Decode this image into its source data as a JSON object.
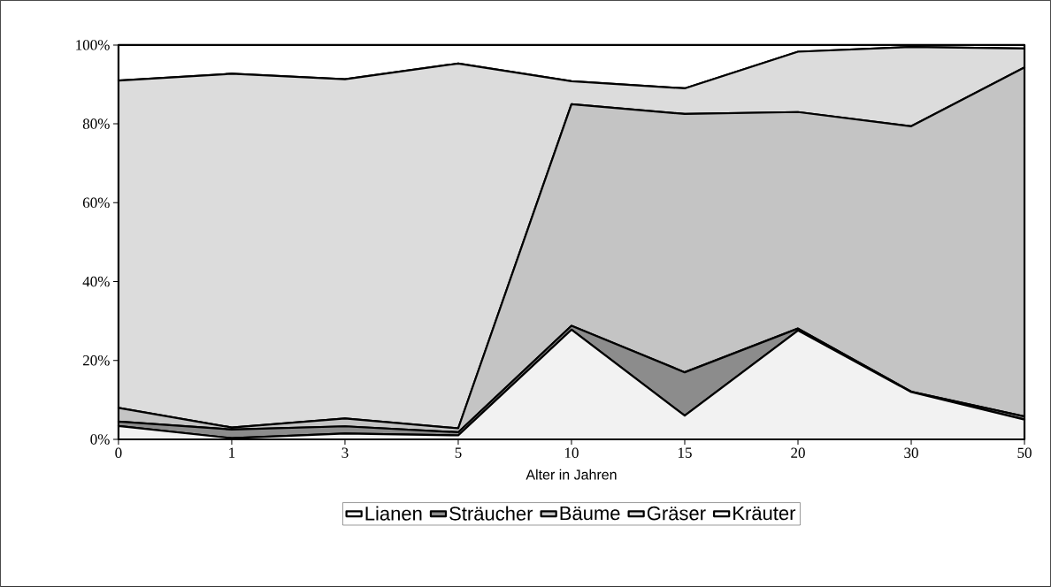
{
  "chart_data": {
    "type": "area",
    "stacked": true,
    "xlabel": "Alter in Jahren",
    "categories": [
      "0",
      "1",
      "3",
      "5",
      "10",
      "15",
      "20",
      "30",
      "50"
    ],
    "series": [
      {
        "name": "Lianen",
        "color": "#f2f2f2",
        "values": [
          3.4,
          0.3,
          1.5,
          1,
          27.8,
          6,
          27.6,
          12,
          5
        ]
      },
      {
        "name": "Sträucher",
        "color": "#8c8c8c",
        "values": [
          1.1,
          2.2,
          1.8,
          0.8,
          1,
          11,
          0.5,
          0.1,
          0.8
        ]
      },
      {
        "name": "Bäume",
        "color": "#c4c4c4",
        "values": [
          3.5,
          0.5,
          2,
          1,
          56.2,
          65.5,
          54.9,
          67.3,
          88.5
        ]
      },
      {
        "name": "Gräser",
        "color": "#dcdcdc",
        "values": [
          83,
          89.7,
          86,
          92.5,
          5.8,
          6.5,
          15.3,
          20.1,
          4.8
        ]
      },
      {
        "name": "Kräuter",
        "color": "#ffffff",
        "values": [
          9,
          7.3,
          8.7,
          4.7,
          9.2,
          11,
          1.7,
          0.5,
          0.9
        ]
      }
    ],
    "ylim": [
      0,
      100
    ],
    "yticks": [
      {
        "value": 0,
        "label": "0%"
      },
      {
        "value": 20,
        "label": "20%"
      },
      {
        "value": 40,
        "label": "40%"
      },
      {
        "value": 60,
        "label": "60%"
      },
      {
        "value": 80,
        "label": "80%"
      },
      {
        "value": 100,
        "label": "100%"
      }
    ],
    "legend": "bottom"
  }
}
